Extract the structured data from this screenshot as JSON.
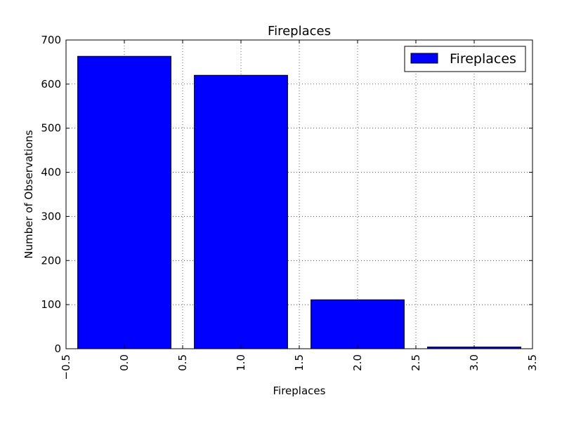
{
  "chart_data": {
    "type": "bar",
    "title": "Fireplaces",
    "xlabel": "Fireplaces",
    "ylabel": "Number of Observations",
    "x": [
      0,
      1,
      2,
      3
    ],
    "series": [
      {
        "name": "Fireplaces",
        "values": [
          663,
          620,
          111,
          4
        ]
      }
    ],
    "bar_width": 0.8,
    "xlim": [
      -0.5,
      3.5
    ],
    "ylim": [
      0,
      700
    ],
    "xticks": [
      "−0.5",
      "0.0",
      "0.5",
      "1.0",
      "1.5",
      "2.0",
      "2.5",
      "3.0",
      "3.5"
    ],
    "xtick_values": [
      -0.5,
      0,
      0.5,
      1,
      1.5,
      2,
      2.5,
      3,
      3.5
    ],
    "yticks": [
      "0",
      "100",
      "200",
      "300",
      "400",
      "500",
      "600",
      "700"
    ],
    "ytick_values": [
      0,
      100,
      200,
      300,
      400,
      500,
      600,
      700
    ],
    "xtick_rotation": "vertical",
    "grid": true,
    "legend": "top-right",
    "bar_color": "#0000ff",
    "edge_color": "#000000"
  }
}
